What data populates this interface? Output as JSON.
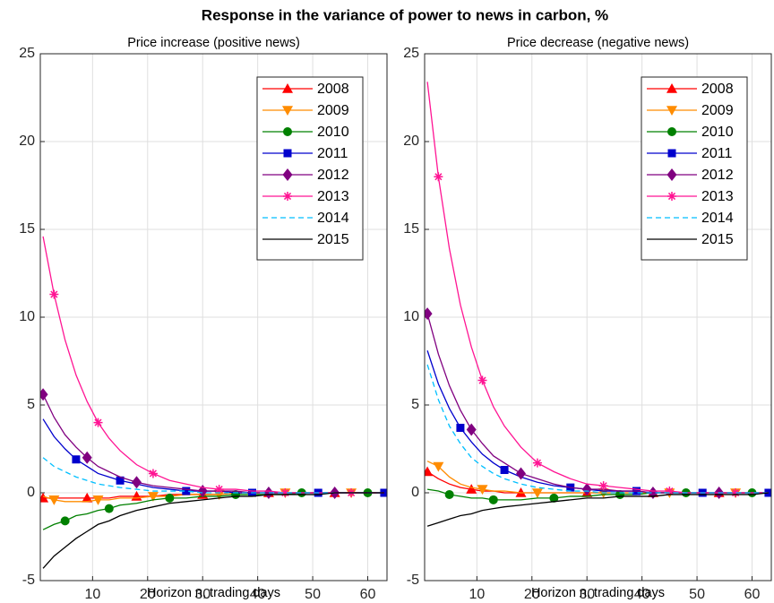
{
  "title": "Response in the variance of power to news in carbon, %",
  "chart_data": [
    {
      "type": "line",
      "title": "Price increase (positive news)",
      "xlabel": "Horizon n, trading days",
      "xlim": [
        0.5,
        63.5
      ],
      "xticks": [
        10,
        20,
        30,
        40,
        50,
        60
      ],
      "ylim": [
        -5,
        25
      ],
      "yticks": [
        -5,
        0,
        5,
        10,
        15,
        20,
        25
      ],
      "grid": true,
      "legend": "upper right",
      "x": [
        1,
        3,
        5,
        7,
        9,
        11,
        13,
        15,
        18,
        21,
        24,
        27,
        30,
        33,
        36,
        39,
        42,
        45,
        48,
        51,
        54,
        57,
        60,
        63
      ],
      "series": [
        {
          "name": "2008",
          "color": "#ff0000",
          "marker": "triangle-up",
          "dash": "solid",
          "values": [
            -0.3,
            -0.3,
            -0.3,
            -0.3,
            -0.3,
            -0.3,
            -0.3,
            -0.2,
            -0.2,
            -0.2,
            -0.1,
            -0.1,
            -0.1,
            -0.1,
            0,
            0,
            0,
            0,
            0,
            0,
            0,
            0,
            0,
            0
          ]
        },
        {
          "name": "2009",
          "color": "#ff8c00",
          "marker": "triangle-down",
          "dash": "solid",
          "values": [
            -0.2,
            -0.4,
            -0.5,
            -0.5,
            -0.5,
            -0.4,
            -0.4,
            -0.3,
            -0.3,
            -0.2,
            -0.2,
            -0.1,
            -0.1,
            -0.1,
            0,
            0,
            0,
            0,
            0,
            0,
            0,
            0,
            0,
            0
          ]
        },
        {
          "name": "2010",
          "color": "#008000",
          "marker": "circle",
          "dash": "solid",
          "values": [
            -2.1,
            -1.8,
            -1.6,
            -1.3,
            -1.2,
            -1.0,
            -0.9,
            -0.7,
            -0.6,
            -0.4,
            -0.3,
            -0.3,
            -0.2,
            -0.2,
            -0.1,
            -0.1,
            -0.1,
            -0.1,
            0,
            0,
            0,
            0,
            0,
            0
          ]
        },
        {
          "name": "2011",
          "color": "#0000cd",
          "marker": "square",
          "dash": "solid",
          "values": [
            4.2,
            3.2,
            2.5,
            1.9,
            1.5,
            1.1,
            0.9,
            0.7,
            0.5,
            0.3,
            0.2,
            0.1,
            0.1,
            0.1,
            0,
            0,
            0,
            0,
            0,
            0,
            0,
            0,
            0,
            0
          ]
        },
        {
          "name": "2012",
          "color": "#800080",
          "marker": "diamond",
          "dash": "solid",
          "values": [
            5.6,
            4.3,
            3.3,
            2.6,
            2.0,
            1.5,
            1.2,
            0.9,
            0.6,
            0.4,
            0.3,
            0.2,
            0.1,
            0.1,
            0.1,
            0,
            0,
            0,
            0,
            0,
            0,
            0,
            0,
            0
          ]
        },
        {
          "name": "2013",
          "color": "#ff1493",
          "marker": "star",
          "dash": "solid",
          "values": [
            14.6,
            11.3,
            8.7,
            6.7,
            5.2,
            4.0,
            3.1,
            2.4,
            1.6,
            1.1,
            0.7,
            0.5,
            0.3,
            0.2,
            0.2,
            0.1,
            0.1,
            0,
            0,
            0,
            0,
            0,
            0,
            0
          ]
        },
        {
          "name": "2014",
          "color": "#00bfff",
          "marker": "none",
          "dash": "dashed",
          "values": [
            2.0,
            1.5,
            1.2,
            0.9,
            0.7,
            0.5,
            0.4,
            0.3,
            0.2,
            0.1,
            0.1,
            0.1,
            0,
            0,
            0,
            0,
            0,
            0,
            0,
            0,
            0,
            0,
            0,
            0
          ]
        },
        {
          "name": "2015",
          "color": "#000000",
          "marker": "none",
          "dash": "solid",
          "values": [
            -4.3,
            -3.6,
            -3.1,
            -2.6,
            -2.2,
            -1.8,
            -1.6,
            -1.3,
            -1.0,
            -0.8,
            -0.6,
            -0.5,
            -0.4,
            -0.3,
            -0.2,
            -0.2,
            -0.1,
            -0.1,
            -0.1,
            -0.1,
            0,
            0,
            0,
            0
          ]
        }
      ]
    },
    {
      "type": "line",
      "title": "Price decrease (negative news)",
      "xlabel": "Horizon n, trading days",
      "xlim": [
        0.5,
        63.5
      ],
      "xticks": [
        10,
        20,
        30,
        40,
        50,
        60
      ],
      "ylim": [
        -5,
        25
      ],
      "yticks": [
        -5,
        0,
        5,
        10,
        15,
        20,
        25
      ],
      "grid": true,
      "legend": "upper right",
      "x": [
        1,
        3,
        5,
        7,
        9,
        11,
        13,
        15,
        18,
        21,
        24,
        27,
        30,
        33,
        36,
        39,
        42,
        45,
        48,
        51,
        54,
        57,
        60,
        63
      ],
      "series": [
        {
          "name": "2008",
          "color": "#ff0000",
          "marker": "triangle-up",
          "dash": "solid",
          "values": [
            1.2,
            0.8,
            0.5,
            0.3,
            0.2,
            0.1,
            0.1,
            0,
            0,
            0,
            0,
            0,
            0,
            0,
            0,
            0,
            0,
            0,
            0,
            0,
            0,
            0,
            0,
            0
          ]
        },
        {
          "name": "2009",
          "color": "#ff8c00",
          "marker": "triangle-down",
          "dash": "solid",
          "values": [
            1.8,
            1.5,
            0.9,
            0.5,
            0.3,
            0.2,
            0.1,
            0.1,
            0,
            0,
            0,
            0,
            0,
            0,
            0,
            0,
            0,
            0,
            0,
            0,
            0,
            0,
            0,
            0
          ]
        },
        {
          "name": "2010",
          "color": "#008000",
          "marker": "circle",
          "dash": "solid",
          "values": [
            0.2,
            0.1,
            -0.1,
            -0.2,
            -0.3,
            -0.3,
            -0.4,
            -0.4,
            -0.4,
            -0.3,
            -0.3,
            -0.2,
            -0.2,
            -0.1,
            -0.1,
            -0.1,
            0,
            0,
            0,
            0,
            0,
            0,
            0,
            0
          ]
        },
        {
          "name": "2011",
          "color": "#0000cd",
          "marker": "square",
          "dash": "solid",
          "values": [
            8.1,
            6.2,
            4.8,
            3.7,
            2.9,
            2.2,
            1.7,
            1.3,
            0.9,
            0.6,
            0.4,
            0.3,
            0.2,
            0.1,
            0.1,
            0.1,
            0,
            0,
            0,
            0,
            0,
            0,
            0,
            0
          ]
        },
        {
          "name": "2012",
          "color": "#800080",
          "marker": "diamond",
          "dash": "solid",
          "values": [
            10.2,
            7.9,
            6.1,
            4.7,
            3.6,
            2.8,
            2.1,
            1.7,
            1.1,
            0.8,
            0.5,
            0.3,
            0.2,
            0.2,
            0.1,
            0.1,
            0,
            0,
            0,
            0,
            0,
            0,
            0,
            0
          ]
        },
        {
          "name": "2013",
          "color": "#ff1493",
          "marker": "star",
          "dash": "solid",
          "values": [
            23.4,
            18.0,
            13.9,
            10.7,
            8.3,
            6.4,
            4.9,
            3.8,
            2.6,
            1.7,
            1.2,
            0.8,
            0.5,
            0.4,
            0.3,
            0.2,
            0.1,
            0.1,
            0,
            0,
            0,
            0,
            0,
            0
          ]
        },
        {
          "name": "2014",
          "color": "#00bfff",
          "marker": "none",
          "dash": "dashed",
          "values": [
            7.3,
            5.3,
            3.8,
            2.8,
            2.0,
            1.5,
            1.1,
            0.8,
            0.5,
            0.3,
            0.2,
            0.1,
            0.1,
            0,
            0,
            0,
            0,
            0,
            0,
            0,
            0,
            0,
            0,
            0
          ]
        },
        {
          "name": "2015",
          "color": "#000000",
          "marker": "none",
          "dash": "solid",
          "values": [
            -1.9,
            -1.7,
            -1.5,
            -1.3,
            -1.2,
            -1.0,
            -0.9,
            -0.8,
            -0.7,
            -0.6,
            -0.5,
            -0.4,
            -0.3,
            -0.3,
            -0.2,
            -0.2,
            -0.2,
            -0.1,
            -0.1,
            -0.1,
            -0.1,
            -0.1,
            -0.1,
            0
          ]
        }
      ]
    }
  ]
}
